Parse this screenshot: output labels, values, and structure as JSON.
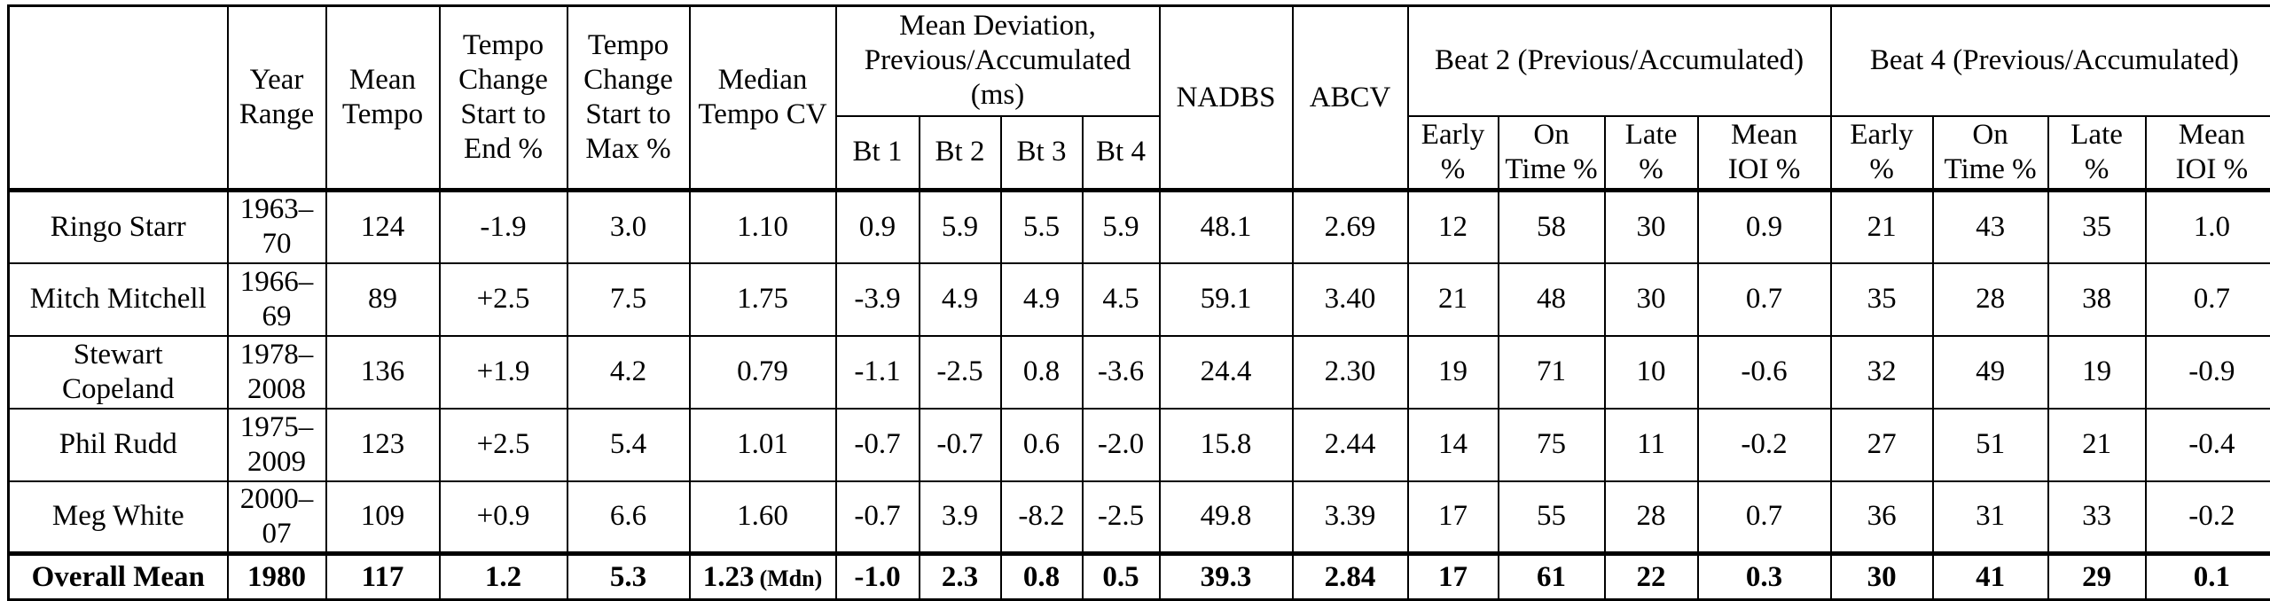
{
  "table": {
    "header": {
      "name": "",
      "year_range": "Year\nRange",
      "mean_tempo": "Mean\nTempo",
      "tempo_change_end": "Tempo\nChange\nStart to\nEnd %",
      "tempo_change_max": "Tempo\nChange\nStart to\nMax %",
      "median_tempo_cv": "Median\nTempo CV",
      "mean_deviation_group": "Mean Deviation,\nPrevious/Accumulated\n(ms)",
      "bt_cols": [
        "Bt 1",
        "Bt 2",
        "Bt 3",
        "Bt 4"
      ],
      "nadbs": "NADBS",
      "abcv": "ABCV",
      "beat2_group": "Beat 2 (Previous/Accumulated)",
      "beat4_group": "Beat 4 (Previous/Accumulated)",
      "beat_sub": [
        "Early\n%",
        "On\nTime %",
        "Late\n%",
        "Mean\nIOI %"
      ]
    },
    "rows": [
      {
        "name": "Ringo Starr",
        "year_range": "1963–\n70",
        "values": [
          "124",
          "-1.9",
          "3.0",
          "1.10",
          "0.9",
          "5.9",
          "5.5",
          "5.9",
          "48.1",
          "2.69",
          "12",
          "58",
          "30",
          "0.9",
          "21",
          "43",
          "35",
          "1.0"
        ]
      },
      {
        "name": "Mitch Mitchell",
        "year_range": "1966–\n69",
        "values": [
          "89",
          "+2.5",
          "7.5",
          "1.75",
          "-3.9",
          "4.9",
          "4.9",
          "4.5",
          "59.1",
          "3.40",
          "21",
          "48",
          "30",
          "0.7",
          "35",
          "28",
          "38",
          "0.7"
        ]
      },
      {
        "name": "Stewart\nCopeland",
        "year_range": "1978–\n2008",
        "values": [
          "136",
          "+1.9",
          "4.2",
          "0.79",
          "-1.1",
          "-2.5",
          "0.8",
          "-3.6",
          "24.4",
          "2.30",
          "19",
          "71",
          "10",
          "-0.6",
          "32",
          "49",
          "19",
          "-0.9"
        ]
      },
      {
        "name": "Phil Rudd",
        "year_range": "1975–\n2009",
        "values": [
          "123",
          "+2.5",
          "5.4",
          "1.01",
          "-0.7",
          "-0.7",
          "0.6",
          "-2.0",
          "15.8",
          "2.44",
          "14",
          "75",
          "11",
          "-0.2",
          "27",
          "51",
          "21",
          "-0.4"
        ]
      },
      {
        "name": "Meg White",
        "year_range": "2000–\n07",
        "values": [
          "109",
          "+0.9",
          "6.6",
          "1.60",
          "-0.7",
          "3.9",
          "-8.2",
          "-2.5",
          "49.8",
          "3.39",
          "17",
          "55",
          "28",
          "0.7",
          "36",
          "31",
          "33",
          "-0.2"
        ]
      }
    ],
    "overall": {
      "name": "Overall Mean",
      "year": "1980",
      "mean_tempo": "117",
      "tempo_change_end": "1.2",
      "tempo_change_max": "5.3",
      "median_tempo_cv": "1.23",
      "median_tempo_cv_note": "(Mdn)",
      "values": [
        "-1.0",
        "2.3",
        "0.8",
        "0.5",
        "39.3",
        "2.84",
        "17",
        "61",
        "22",
        "0.3",
        "30",
        "41",
        "29",
        "0.1"
      ]
    }
  }
}
